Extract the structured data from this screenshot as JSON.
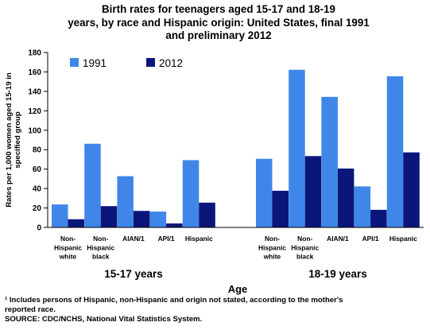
{
  "chart_data": {
    "type": "bar",
    "title_lines": [
      "Birth rates for teenagers aged 15-17 and 18-19",
      "years, by race and Hispanic origin:  United States, final 1991",
      "and preliminary 2012"
    ],
    "ylabel_lines": [
      "Rates per 1,000 women aged 15-19 in",
      "specified group"
    ],
    "xlabel": "Age",
    "ylim": [
      0,
      180
    ],
    "yticks": [
      "0",
      "20",
      "40",
      "60",
      "80",
      "100",
      "120",
      "140",
      "160",
      "180"
    ],
    "groups": [
      {
        "label": "15-17 years",
        "categories": [
          {
            "lines": [
              "Non-",
              "Hispanic",
              "white"
            ]
          },
          {
            "lines": [
              "Non-",
              "Hispanic",
              "black"
            ]
          },
          {
            "lines": [
              "AIAN/1"
            ]
          },
          {
            "lines": [
              "API/1"
            ]
          },
          {
            "lines": [
              "Hispanic"
            ]
          }
        ]
      },
      {
        "label": "18-19 years",
        "categories": [
          {
            "lines": [
              "Non-",
              "Hispanic",
              "white"
            ]
          },
          {
            "lines": [
              "Non-",
              "Hispanic",
              "black"
            ]
          },
          {
            "lines": [
              "AIAN/1"
            ]
          },
          {
            "lines": [
              "API/1"
            ]
          },
          {
            "lines": [
              "Hispanic"
            ]
          }
        ]
      }
    ],
    "series": [
      {
        "name": "1991",
        "color": "#3f86e8",
        "values": [
          23.6,
          86.1,
          52.7,
          16.3,
          69.2,
          70.6,
          162.2,
          134.3,
          42.2,
          155.5
        ]
      },
      {
        "name": "2012",
        "color": "#0a167a",
        "values": [
          8.4,
          21.9,
          17.0,
          4.1,
          25.5,
          37.7,
          73.4,
          60.6,
          18.1,
          77.2
        ]
      }
    ],
    "legend_position": "top-left"
  },
  "footnote": {
    "line1": "¹ Includes persons of Hispanic, non-Hispanic and origin not stated, according to the mother's",
    "line2": "reported race.",
    "source": "SOURCE: CDC/NCHS, National Vital Statistics System."
  }
}
